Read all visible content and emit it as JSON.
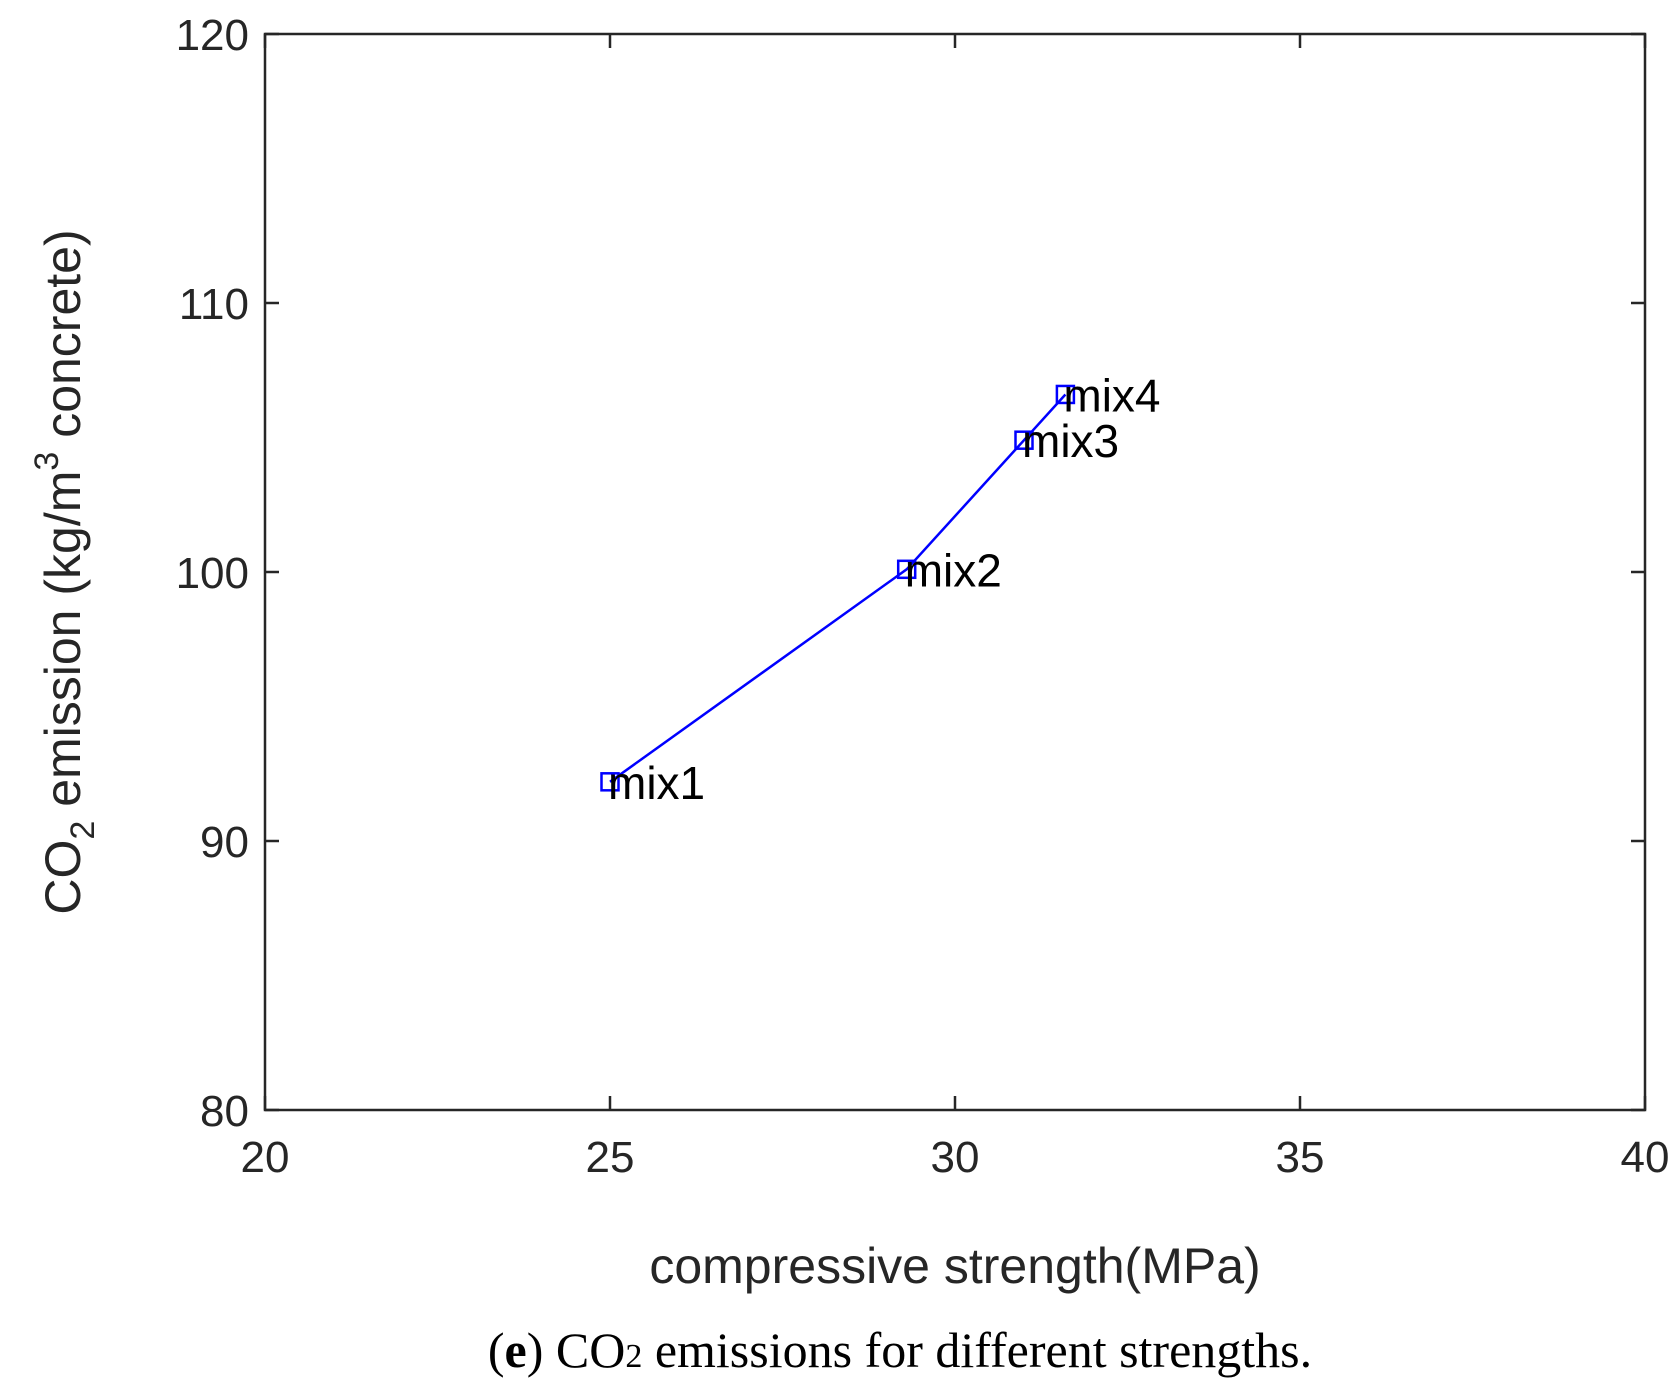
{
  "chart_data": {
    "type": "line",
    "x": [
      25.0,
      29.3,
      31.0,
      31.6
    ],
    "y": [
      92.2,
      100.1,
      104.9,
      106.6
    ],
    "point_labels": [
      "mix1",
      "mix2",
      "mix3",
      "mix4"
    ],
    "xlim": [
      20,
      40
    ],
    "ylim": [
      80,
      120
    ],
    "xticks": [
      "20",
      "25",
      "30",
      "35",
      "40"
    ],
    "yticks": [
      "80",
      "90",
      "100",
      "110",
      "120"
    ],
    "xlabel": "compressive strength(MPa)",
    "ylabel": {
      "prefix": "CO",
      "prefix_sub": "2",
      "middle": " emission (kg/m",
      "middle_sup": "3",
      "suffix": " concrete)"
    },
    "grid": false,
    "line_color": "#0000ff",
    "marker": "square-open"
  },
  "caption": {
    "label_open": "(",
    "label_letter": "e",
    "label_close": ")",
    "text_prefix": " CO",
    "text_sub": "2",
    "text_suffix": " emissions for different strengths."
  }
}
